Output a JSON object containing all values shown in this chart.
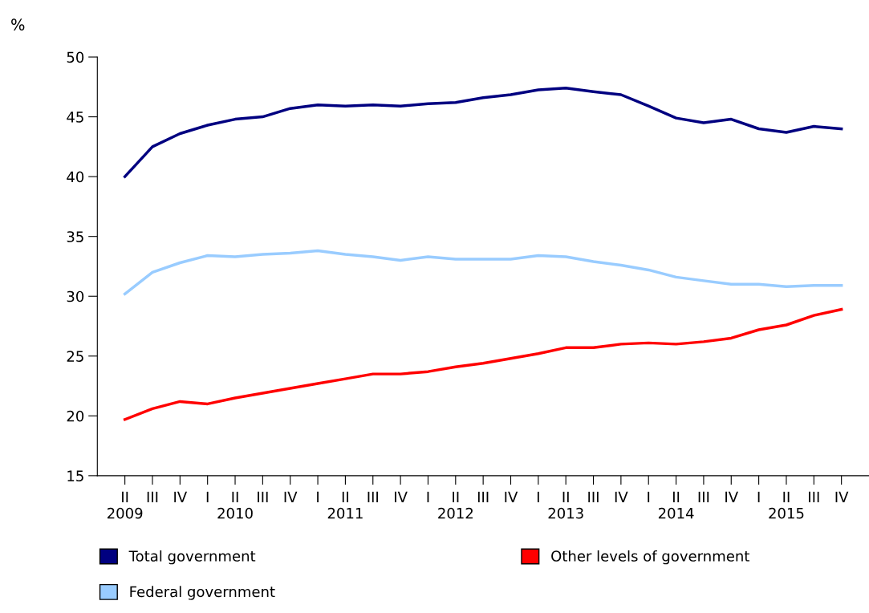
{
  "chart_data": {
    "type": "line",
    "ylabel": "%",
    "categories": [
      "II\n2009",
      "III",
      "IV",
      "I",
      "II\n2010",
      "III",
      "IV",
      "I",
      "II\n2011",
      "III",
      "IV",
      "I",
      "II\n2012",
      "III",
      "IV",
      "I",
      "II\n2013",
      "III",
      "IV",
      "I",
      "II\n2014",
      "III",
      "IV",
      "I",
      "II\n2015",
      "III",
      "IV"
    ],
    "series": [
      {
        "name": "Total government",
        "color": "#000080",
        "values": [
          40.0,
          42.5,
          43.6,
          44.3,
          44.8,
          45.0,
          45.7,
          46.0,
          45.9,
          46.0,
          45.9,
          46.1,
          46.2,
          46.6,
          46.85,
          47.25,
          47.4,
          47.1,
          46.85,
          45.9,
          44.9,
          44.5,
          44.8,
          44.0,
          43.7,
          44.2,
          44.0
        ]
      },
      {
        "name": "Federal government",
        "color": "#99ccff",
        "values": [
          30.2,
          32.0,
          32.8,
          33.4,
          33.3,
          33.5,
          33.6,
          33.8,
          33.5,
          33.3,
          33.0,
          33.3,
          33.1,
          33.1,
          33.1,
          33.4,
          33.3,
          32.9,
          32.6,
          32.2,
          31.6,
          31.3,
          31.0,
          31.0,
          30.8,
          30.9,
          30.9
        ]
      },
      {
        "name": "Other levels of government",
        "color": "#ff0000",
        "values": [
          19.7,
          20.6,
          21.2,
          21.0,
          21.5,
          21.9,
          22.3,
          22.7,
          23.1,
          23.5,
          23.5,
          23.7,
          24.1,
          24.4,
          24.8,
          25.2,
          25.7,
          25.7,
          26.0,
          26.1,
          26.0,
          26.2,
          26.5,
          27.2,
          27.6,
          28.4,
          28.9
        ]
      }
    ],
    "ylim": [
      15,
      50
    ],
    "yticks": [
      15,
      20,
      25,
      30,
      35,
      40,
      45,
      50
    ],
    "grid": false,
    "legend": "bottom"
  }
}
